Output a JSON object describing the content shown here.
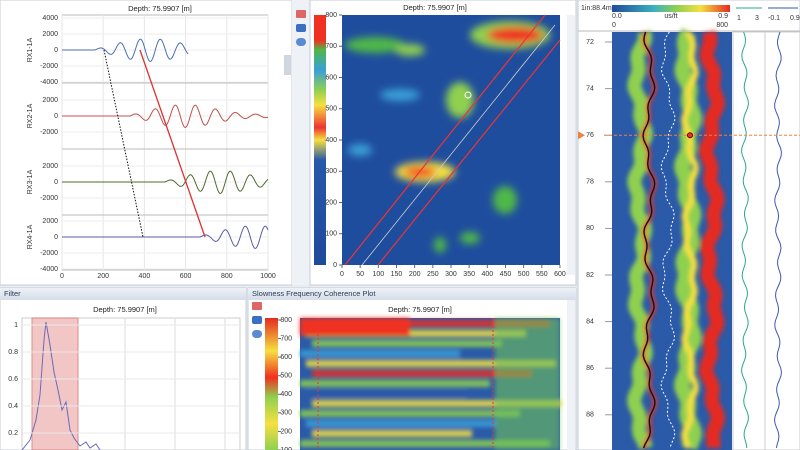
{
  "waveform_panel": {
    "header": "Depth: 75.9907 [m]",
    "tracks": [
      {
        "label": "RX1-1A",
        "yticks": [
          4000,
          2000,
          0,
          -2000,
          -4000
        ]
      },
      {
        "label": "RX2-1A",
        "yticks": [
          2000,
          0,
          -2000
        ]
      },
      {
        "label": "RX3-1A",
        "yticks": [
          2000,
          0,
          -2000
        ]
      },
      {
        "label": "RX4-1A",
        "yticks": [
          2000,
          0,
          -2000,
          -4000
        ]
      }
    ],
    "xticks": [
      0,
      200,
      400,
      600,
      800,
      1000
    ]
  },
  "semblance_panel": {
    "header": "Depth: 75.9907 [m]",
    "yticks": [
      0,
      100,
      200,
      300,
      400,
      500,
      600,
      700,
      800
    ],
    "xticks": [
      0,
      50,
      100,
      150,
      200,
      250,
      300,
      350,
      400,
      450,
      500,
      550,
      600
    ]
  },
  "log_panel": {
    "scale": "1in:88.4m",
    "colorbar_labels": [
      "0.0",
      "us/ft",
      "0.9"
    ],
    "colorbar_range": [
      "0",
      "800"
    ],
    "track1_range": [
      "1",
      "3"
    ],
    "track2_range": [
      "-0.1",
      "0.9"
    ],
    "depth_ticks": [
      72,
      74,
      76,
      78,
      80,
      82,
      84,
      86,
      88
    ],
    "current_depth": 76
  },
  "filter_panel": {
    "title": "Filter",
    "header": "Depth: 75.9907 [m]",
    "yticks": [
      1,
      0.8,
      0.6,
      0.4,
      0.2
    ]
  },
  "coherence_panel": {
    "title": "Slowness Frequency Coherence Plot",
    "header": "Depth: 75.9907 [m]",
    "yticks": [
      100,
      200,
      300,
      400,
      500,
      600,
      700,
      800
    ]
  }
}
